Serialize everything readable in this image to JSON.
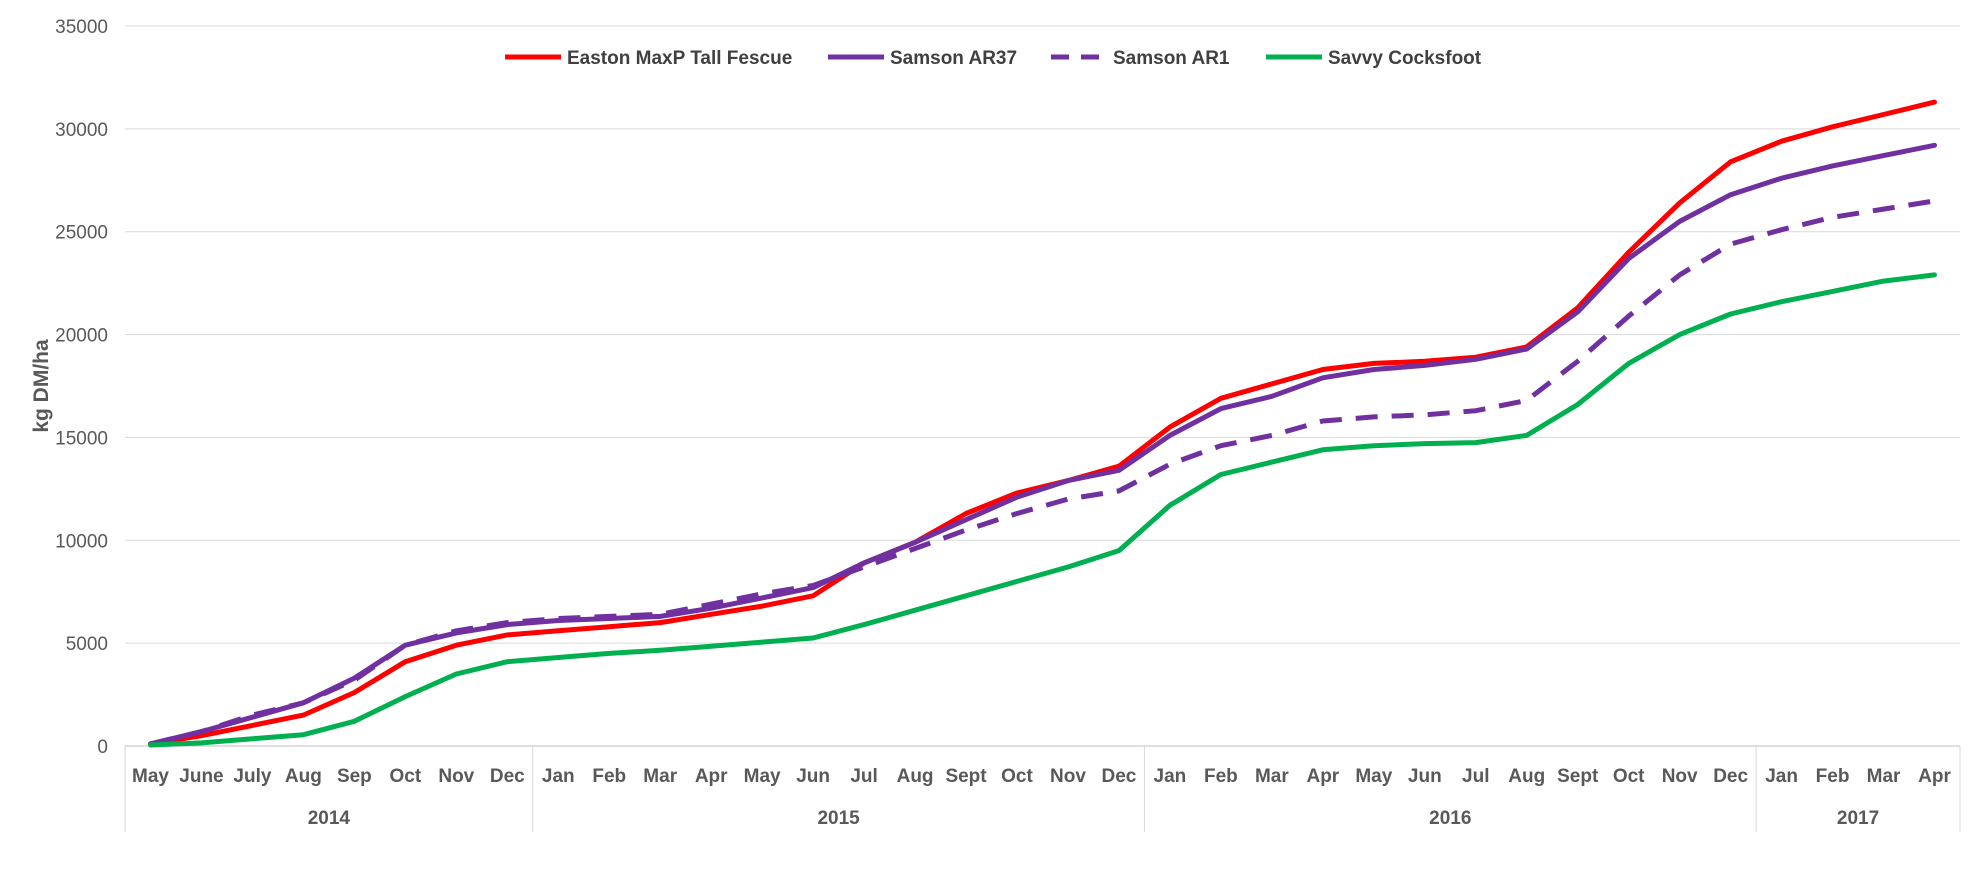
{
  "chart_data": {
    "type": "line",
    "title": "",
    "ylabel": "kg DM/ha",
    "ylim": [
      0,
      35000
    ],
    "yticks": [
      0,
      5000,
      10000,
      15000,
      20000,
      25000,
      30000,
      35000
    ],
    "grid": true,
    "legend_position": "top-center",
    "categories": [
      "May",
      "June",
      "July",
      "Aug",
      "Sep",
      "Oct",
      "Nov",
      "Dec",
      "Jan",
      "Feb",
      "Mar",
      "Apr",
      "May",
      "Jun",
      "Jul",
      "Aug",
      "Sept",
      "Oct",
      "Nov",
      "Dec",
      "Jan",
      "Feb",
      "Mar",
      "Apr",
      "May",
      "Jun",
      "Jul",
      "Aug",
      "Sept",
      "Oct",
      "Nov",
      "Dec",
      "Jan",
      "Feb",
      "Mar",
      "Apr"
    ],
    "year_groups": [
      {
        "label": "2014",
        "start": 0,
        "end": 7
      },
      {
        "label": "2015",
        "start": 8,
        "end": 19
      },
      {
        "label": "2016",
        "start": 20,
        "end": 31
      },
      {
        "label": "2017",
        "start": 32,
        "end": 35
      }
    ],
    "series": [
      {
        "name": "Easton MaxP Tall Fescue",
        "color": "#ff0000",
        "dash": "solid",
        "values": [
          100,
          500,
          1000,
          1500,
          2600,
          4100,
          4900,
          5400,
          5600,
          5800,
          6000,
          6400,
          6800,
          7300,
          8900,
          9900,
          11300,
          12300,
          12900,
          13600,
          15500,
          16900,
          17600,
          18300,
          18600,
          18700,
          18900,
          19400,
          21300,
          24000,
          26400,
          28400,
          29400,
          30100,
          30700,
          31300
        ]
      },
      {
        "name": "Samson AR37",
        "color": "#7030a0",
        "dash": "solid",
        "values": [
          100,
          700,
          1400,
          2100,
          3300,
          4900,
          5500,
          5900,
          6100,
          6200,
          6300,
          6700,
          7200,
          7700,
          8900,
          9900,
          11000,
          12100,
          12900,
          13400,
          15100,
          16400,
          17000,
          17900,
          18300,
          18500,
          18800,
          19300,
          21100,
          23700,
          25500,
          26800,
          27600,
          28200,
          28700,
          29200
        ]
      },
      {
        "name": "Samson AR1",
        "color": "#7030a0",
        "dash": "dashed",
        "values": [
          100,
          700,
          1500,
          2100,
          3200,
          4900,
          5600,
          6000,
          6200,
          6300,
          6400,
          6900,
          7400,
          7800,
          8700,
          9600,
          10500,
          11300,
          12000,
          12400,
          13700,
          14600,
          15100,
          15800,
          16000,
          16100,
          16300,
          16800,
          18700,
          20900,
          22900,
          24400,
          25100,
          25700,
          26100,
          26500
        ]
      },
      {
        "name": "Savvy Cocksfoot",
        "color": "#00b050",
        "dash": "solid",
        "values": [
          50,
          150,
          350,
          550,
          1200,
          2400,
          3500,
          4100,
          4300,
          4500,
          4650,
          4850,
          5050,
          5250,
          5900,
          6600,
          7300,
          8000,
          8700,
          9500,
          11700,
          13200,
          13800,
          14400,
          14600,
          14700,
          14750,
          15100,
          16600,
          18600,
          20000,
          21000,
          21600,
          22100,
          22600,
          22900
        ]
      }
    ]
  }
}
